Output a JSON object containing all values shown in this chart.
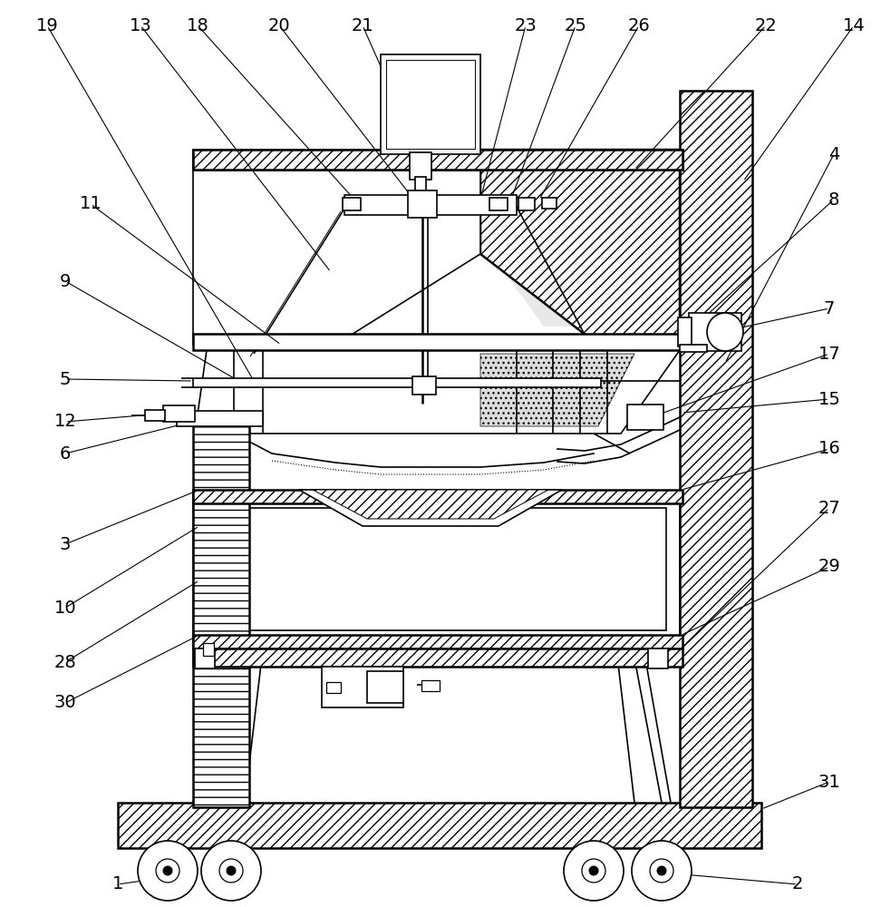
{
  "bg_color": "#ffffff",
  "line_color": "#000000",
  "label_color": "#000000",
  "fig_width": 9.72,
  "fig_height": 10.0,
  "dpi": 100
}
